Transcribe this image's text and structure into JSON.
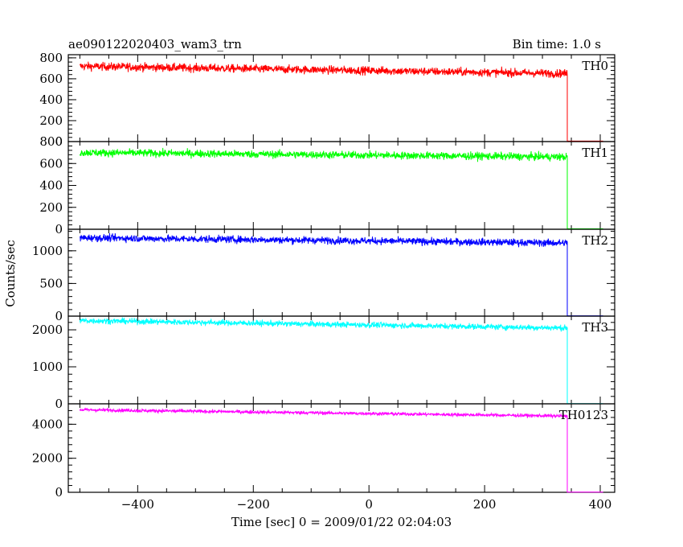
{
  "header": {
    "title": "ae090122020403_wam3_trn",
    "bin_time": "Bin time: 1.0 s"
  },
  "chart_data": {
    "type": "line",
    "title": "ae090122020403_wam3_trn",
    "xlabel": "Time [sec] 0 = 2009/01/22 02:04:03",
    "ylabel": "Counts/sec",
    "xlim": [
      -520,
      425
    ],
    "x_ticks": [
      -400,
      -200,
      0,
      200,
      400
    ],
    "grid": false,
    "series": [
      {
        "name": "TH0",
        "color": "#ff0000",
        "ylim": [
          0,
          830
        ],
        "y_ticks": [
          0,
          200,
          400,
          600,
          800
        ],
        "level_start": 720,
        "level_end": 650,
        "noise": 28,
        "drop_time": 343,
        "end_time": 405,
        "after_value": 5
      },
      {
        "name": "TH1",
        "color": "#00ff00",
        "ylim": [
          0,
          800
        ],
        "y_ticks": [
          0,
          200,
          400,
          600,
          800
        ],
        "level_start": 700,
        "level_end": 660,
        "noise": 25,
        "drop_time": 343,
        "end_time": 405,
        "after_value": 5
      },
      {
        "name": "TH2",
        "color": "#0000ff",
        "ylim": [
          0,
          1330
        ],
        "y_ticks": [
          0,
          500,
          1000
        ],
        "level_start": 1200,
        "level_end": 1120,
        "noise": 40,
        "drop_time": 343,
        "end_time": 405,
        "after_value": 5
      },
      {
        "name": "TH3",
        "color": "#00ffff",
        "ylim": [
          0,
          2370
        ],
        "y_ticks": [
          0,
          1000,
          2000
        ],
        "level_start": 2250,
        "level_end": 2050,
        "noise": 55,
        "drop_time": 343,
        "end_time": 405,
        "after_value": 5
      },
      {
        "name": "TH0123",
        "color": "#ff00ff",
        "ylim": [
          0,
          5200
        ],
        "y_ticks": [
          0,
          2000,
          4000
        ],
        "level_start": 4850,
        "level_end": 4480,
        "noise": 70,
        "drop_time": 343,
        "end_time": 405,
        "after_value": 10
      }
    ]
  }
}
